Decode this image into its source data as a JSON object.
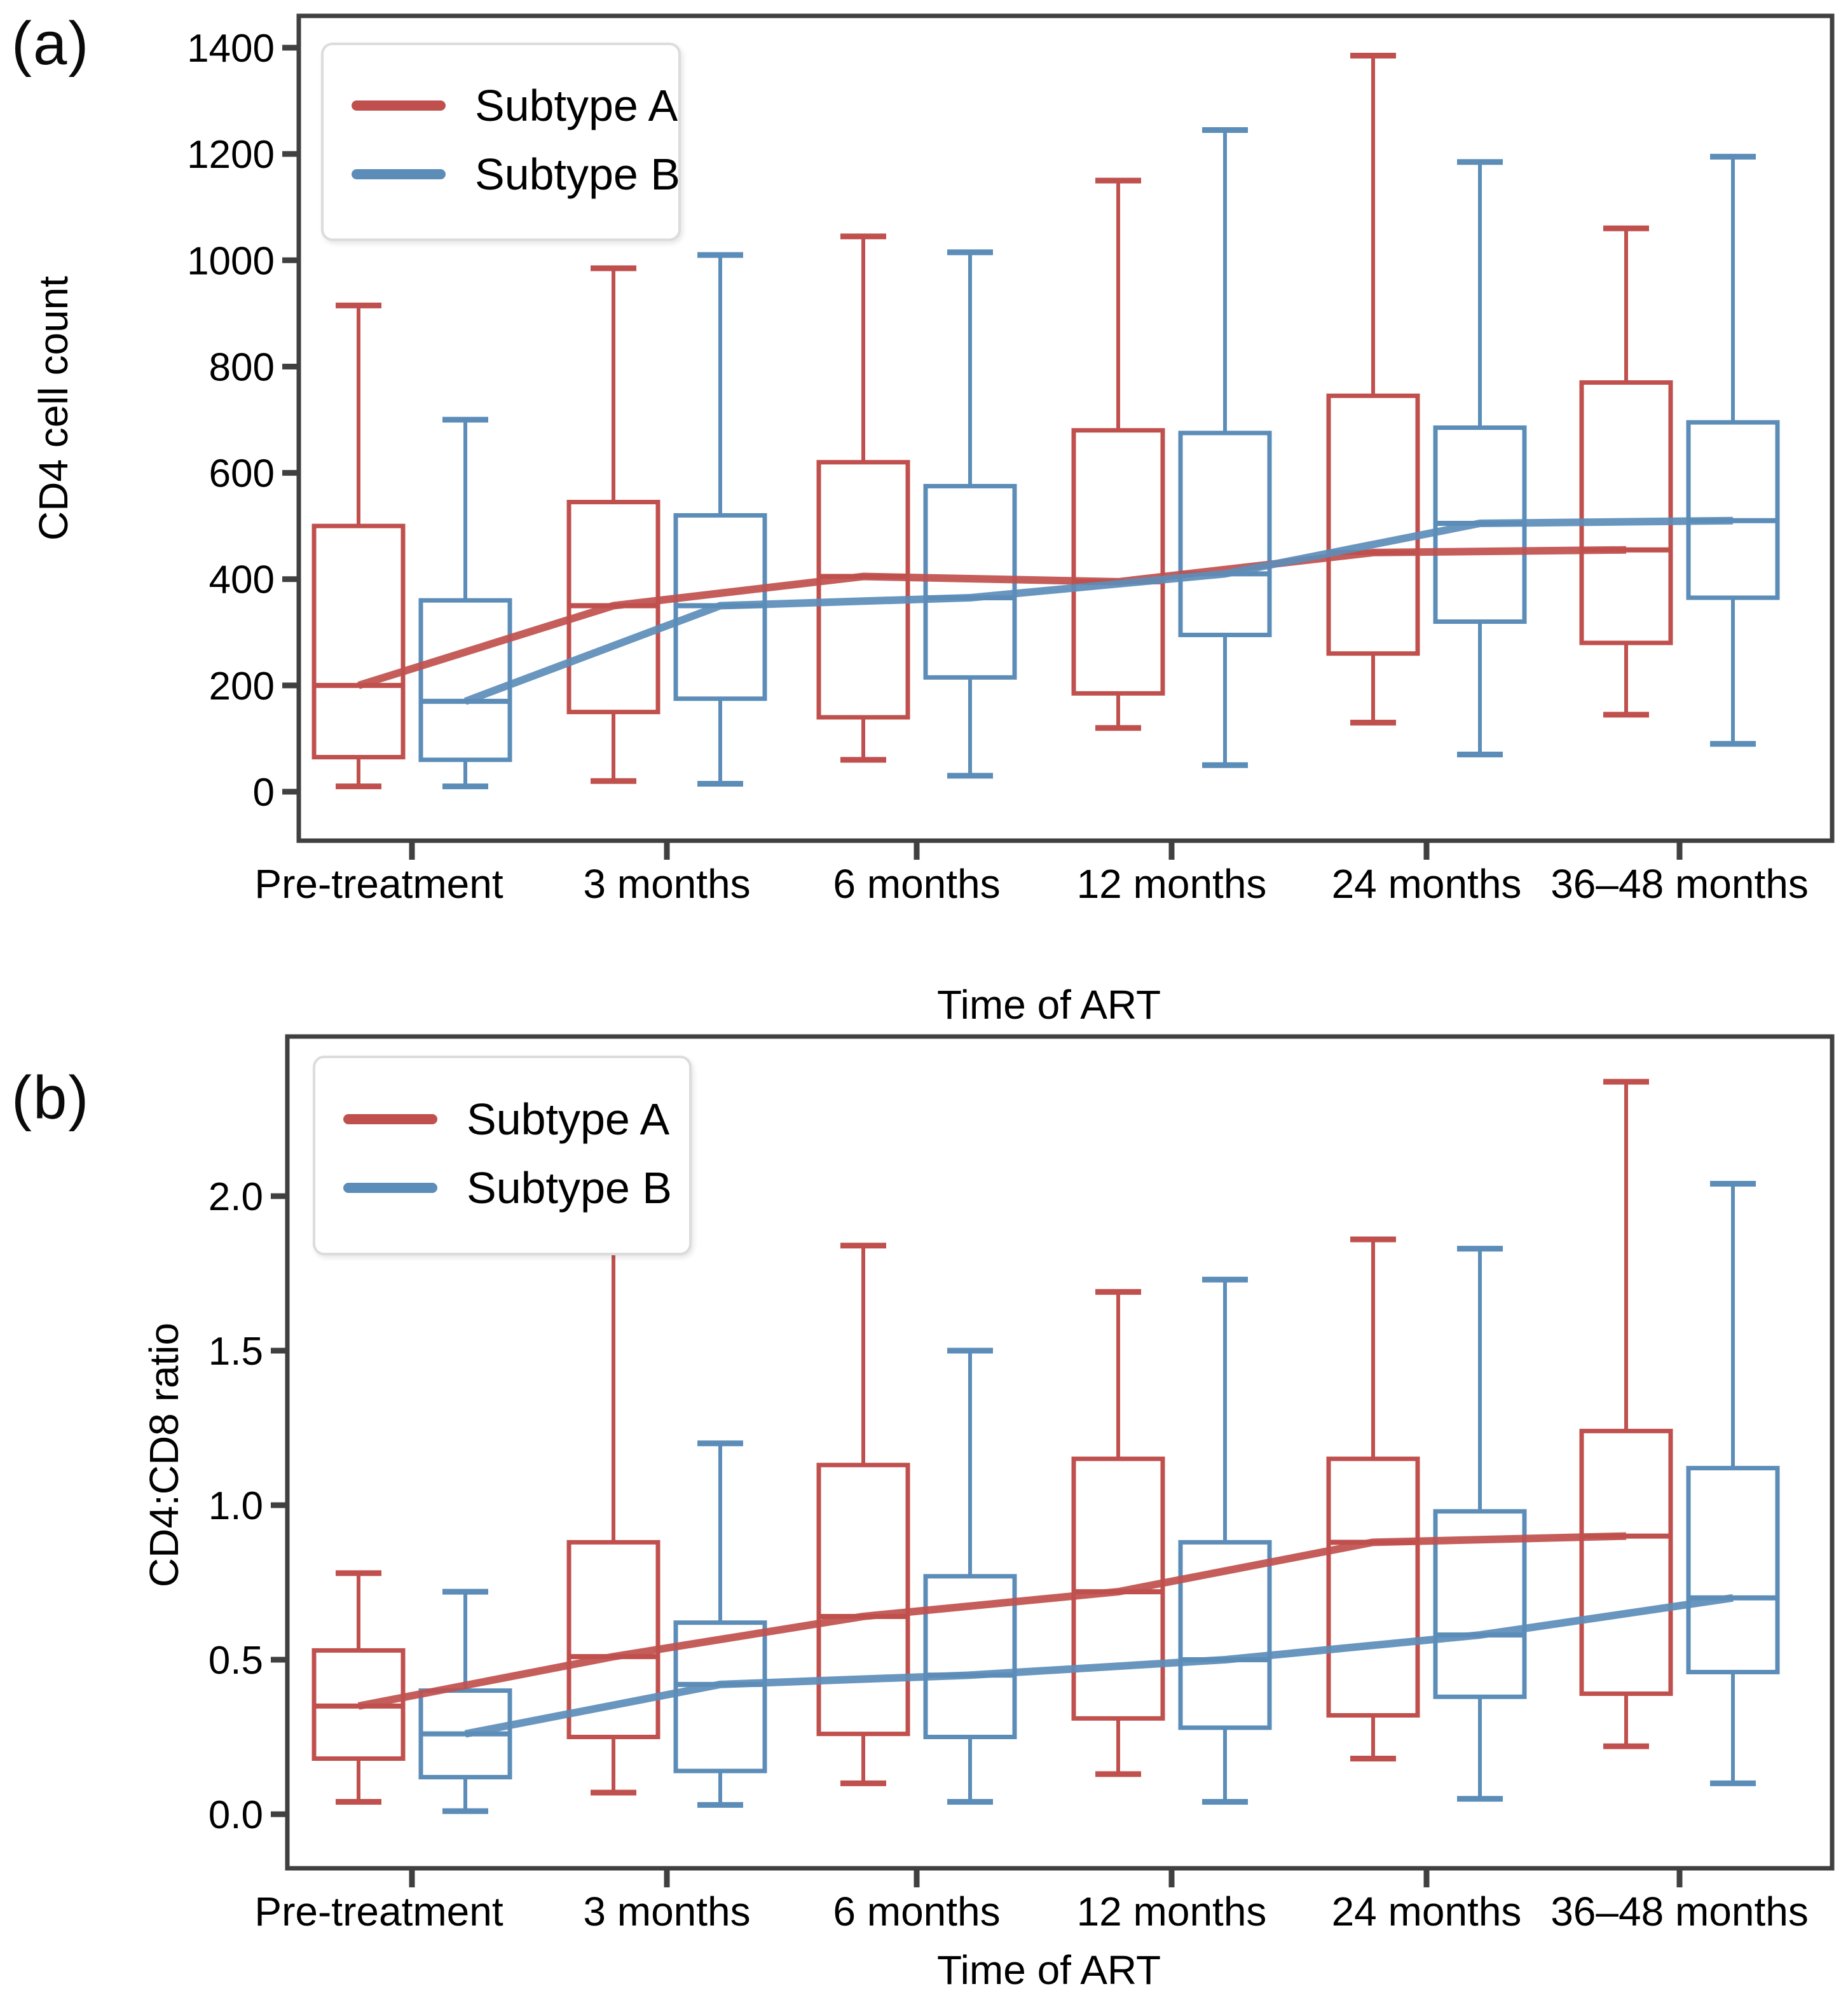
{
  "figure": {
    "description": "Two stacked box-plot panels comparing HIV Subtype A and Subtype B over time of antiretroviral therapy",
    "accent_red": "#C0504D",
    "accent_blue": "#5C8DB8",
    "frame_color": "#404040"
  },
  "chart_data": [
    {
      "type": "box",
      "panel_tag": "(a)",
      "ylabel": "CD4 cell count",
      "xlabel": "Time of ART",
      "categories": [
        "Pre-treatment",
        "3 months",
        "6 months",
        "12 months",
        "24 months",
        "36–48 months"
      ],
      "y_ticks": [
        "0",
        "200",
        "400",
        "600",
        "800",
        "1000",
        "1200",
        "1400"
      ],
      "y_tick_values": [
        0,
        200,
        400,
        600,
        800,
        1000,
        1200,
        1400
      ],
      "ylim": [
        -95,
        1460
      ],
      "grid": false,
      "legend_position": "upper-left",
      "median_trend": true,
      "series": [
        {
          "name": "Subtype A",
          "color": "#C0504D",
          "boxes_format": [
            "whisker_low",
            "q1",
            "median",
            "q3",
            "whisker_high"
          ],
          "boxes": [
            [
              10,
              65,
              200,
              500,
              915
            ],
            [
              20,
              150,
              350,
              545,
              985
            ],
            [
              60,
              140,
              405,
              620,
              1045
            ],
            [
              120,
              185,
              395,
              680,
              1150
            ],
            [
              130,
              260,
              450,
              745,
              1385
            ],
            [
              145,
              280,
              455,
              770,
              1060
            ]
          ]
        },
        {
          "name": "Subtype B",
          "color": "#5C8DB8",
          "boxes_format": [
            "whisker_low",
            "q1",
            "median",
            "q3",
            "whisker_high"
          ],
          "boxes": [
            [
              10,
              60,
              170,
              360,
              700
            ],
            [
              15,
              175,
              350,
              520,
              1010
            ],
            [
              30,
              215,
              365,
              575,
              1015
            ],
            [
              50,
              295,
              410,
              675,
              1245
            ],
            [
              70,
              320,
              505,
              685,
              1185
            ],
            [
              90,
              365,
              510,
              695,
              1195
            ]
          ]
        }
      ]
    },
    {
      "type": "box",
      "panel_tag": "(b)",
      "ylabel": "CD4:CD8 ratio",
      "xlabel": "Time of ART",
      "categories": [
        "Pre-treatment",
        "3 months",
        "6 months",
        "12 months",
        "24 months",
        "36–48 months"
      ],
      "y_ticks": [
        "0.0",
        "0.5",
        "1.0",
        "1.5",
        "2.0"
      ],
      "y_tick_values": [
        0.0,
        0.5,
        1.0,
        1.5,
        2.0
      ],
      "ylim": [
        -0.17,
        2.52
      ],
      "grid": false,
      "legend_position": "upper-left",
      "median_trend": true,
      "series": [
        {
          "name": "Subtype A",
          "color": "#C0504D",
          "boxes_format": [
            "whisker_low",
            "q1",
            "median",
            "q3",
            "whisker_high"
          ],
          "boxes": [
            [
              0.04,
              0.18,
              0.35,
              0.53,
              0.78
            ],
            [
              0.07,
              0.25,
              0.51,
              0.88,
              1.87
            ],
            [
              0.1,
              0.26,
              0.64,
              1.13,
              1.84
            ],
            [
              0.13,
              0.31,
              0.72,
              1.15,
              1.69
            ],
            [
              0.18,
              0.32,
              0.88,
              1.15,
              1.86
            ],
            [
              0.22,
              0.39,
              0.9,
              1.24,
              2.37
            ]
          ]
        },
        {
          "name": "Subtype B",
          "color": "#5C8DB8",
          "boxes_format": [
            "whisker_low",
            "q1",
            "median",
            "q3",
            "whisker_high"
          ],
          "boxes": [
            [
              0.01,
              0.12,
              0.26,
              0.4,
              0.72
            ],
            [
              0.03,
              0.14,
              0.42,
              0.62,
              1.2
            ],
            [
              0.04,
              0.25,
              0.45,
              0.77,
              1.5
            ],
            [
              0.04,
              0.28,
              0.5,
              0.88,
              1.73
            ],
            [
              0.05,
              0.38,
              0.58,
              0.98,
              1.83
            ],
            [
              0.1,
              0.46,
              0.7,
              1.12,
              2.04
            ]
          ]
        }
      ]
    }
  ]
}
